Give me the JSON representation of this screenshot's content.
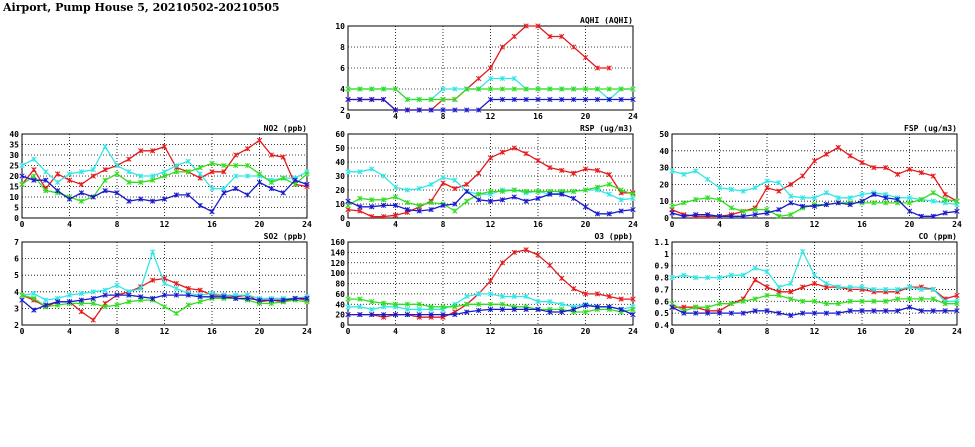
{
  "page": {
    "title": "Airport, Pump House 5, 20210502-20210505"
  },
  "colors": {
    "red": "#e41a1c",
    "cyan": "#33e6e6",
    "green": "#33dd22",
    "blue": "#1a1acc"
  },
  "chart_data": [
    {
      "id": "aqhi",
      "type": "line",
      "title": "AQHI (AQHI)",
      "xlabel": "",
      "ylabel": "",
      "xlim": [
        0,
        24
      ],
      "ylim": [
        2,
        10
      ],
      "xticks": [
        0,
        4,
        8,
        12,
        16,
        20,
        24
      ],
      "yticks": [
        2,
        4,
        6,
        8,
        10
      ],
      "x": [
        0,
        1,
        2,
        3,
        4,
        5,
        6,
        7,
        8,
        9,
        10,
        11,
        12,
        13,
        14,
        15,
        16,
        17,
        18,
        19,
        20,
        21,
        22,
        23,
        24
      ],
      "series": [
        {
          "name": "red",
          "color": "red",
          "values": [
            3,
            3,
            3,
            3,
            2,
            2,
            2,
            2,
            3,
            3,
            4,
            5,
            6,
            8,
            9,
            10,
            10,
            9,
            9,
            8,
            7,
            6,
            6,
            null,
            null
          ]
        },
        {
          "name": "cyan",
          "color": "cyan",
          "values": [
            4,
            4,
            4,
            4,
            4,
            3,
            3,
            3,
            4,
            4,
            4,
            4,
            5,
            5,
            5,
            4,
            4,
            4,
            4,
            4,
            4,
            4,
            3,
            4,
            4
          ]
        },
        {
          "name": "green",
          "color": "green",
          "values": [
            4,
            4,
            4,
            4,
            4,
            3,
            3,
            3,
            3,
            3,
            4,
            4,
            4,
            4,
            4,
            4,
            4,
            4,
            4,
            4,
            4,
            4,
            4,
            4,
            4
          ]
        },
        {
          "name": "blue",
          "color": "blue",
          "values": [
            3,
            3,
            3,
            3,
            2,
            2,
            2,
            2,
            2,
            2,
            2,
            2,
            3,
            3,
            3,
            3,
            3,
            3,
            3,
            3,
            3,
            3,
            3,
            3,
            3
          ]
        }
      ]
    },
    {
      "id": "no2",
      "type": "line",
      "title": "NO2 (ppb)",
      "xlabel": "",
      "ylabel": "",
      "xlim": [
        0,
        24
      ],
      "ylim": [
        0,
        40
      ],
      "xticks": [
        0,
        4,
        8,
        12,
        16,
        20,
        24
      ],
      "yticks": [
        0,
        5,
        10,
        15,
        20,
        25,
        30,
        35,
        40
      ],
      "x": [
        0,
        1,
        2,
        3,
        4,
        5,
        6,
        7,
        8,
        9,
        10,
        11,
        12,
        13,
        14,
        15,
        16,
        17,
        18,
        19,
        20,
        21,
        22,
        23,
        24
      ],
      "series": [
        {
          "name": "red",
          "color": "red",
          "values": [
            16,
            23,
            14,
            21,
            18,
            16,
            20,
            23,
            25,
            28,
            32,
            32,
            34,
            24,
            22,
            19,
            22,
            22,
            30,
            33,
            37,
            30,
            29,
            16,
            15
          ]
        },
        {
          "name": "cyan",
          "color": "cyan",
          "values": [
            25,
            28,
            22,
            17,
            21,
            22,
            23,
            34,
            25,
            22,
            20,
            20,
            22,
            25,
            27,
            21,
            14,
            14,
            20,
            20,
            20,
            18,
            19,
            19,
            22
          ]
        },
        {
          "name": "green",
          "color": "green",
          "values": [
            16,
            20,
            13,
            12,
            10,
            8,
            10,
            18,
            21,
            17,
            17,
            18,
            20,
            22,
            22,
            24,
            26,
            25,
            25,
            25,
            21,
            17,
            19,
            16,
            21
          ]
        },
        {
          "name": "blue",
          "color": "blue",
          "values": [
            20,
            18,
            18,
            13,
            9,
            12,
            10,
            13,
            12,
            8,
            9,
            8,
            9,
            11,
            11,
            6,
            3,
            12,
            14,
            11,
            17,
            14,
            12,
            18,
            16
          ]
        }
      ]
    },
    {
      "id": "rsp",
      "type": "line",
      "title": "RSP (ug/m3)",
      "xlabel": "",
      "ylabel": "",
      "xlim": [
        0,
        24
      ],
      "ylim": [
        0,
        60
      ],
      "xticks": [
        0,
        4,
        8,
        12,
        16,
        20,
        24
      ],
      "yticks": [
        0,
        10,
        20,
        30,
        40,
        50,
        60
      ],
      "x": [
        0,
        1,
        2,
        3,
        4,
        5,
        6,
        7,
        8,
        9,
        10,
        11,
        12,
        13,
        14,
        15,
        16,
        17,
        18,
        19,
        20,
        21,
        22,
        23,
        24
      ],
      "series": [
        {
          "name": "red",
          "color": "red",
          "values": [
            6,
            5,
            1,
            1,
            2,
            4,
            8,
            12,
            25,
            21,
            24,
            32,
            43,
            47,
            50,
            46,
            41,
            36,
            34,
            32,
            35,
            34,
            31,
            18,
            18
          ]
        },
        {
          "name": "cyan",
          "color": "cyan",
          "values": [
            33,
            33,
            35,
            30,
            22,
            20,
            21,
            24,
            29,
            27,
            19,
            17,
            17,
            20,
            20,
            18,
            19,
            17,
            18,
            19,
            20,
            20,
            17,
            13,
            14
          ]
        },
        {
          "name": "green",
          "color": "green",
          "values": [
            9,
            14,
            13,
            13,
            15,
            11,
            9,
            11,
            10,
            5,
            12,
            17,
            19,
            19,
            20,
            19,
            19,
            19,
            19,
            19,
            20,
            22,
            24,
            20,
            17
          ]
        },
        {
          "name": "blue",
          "color": "blue",
          "values": [
            12,
            8,
            8,
            9,
            9,
            6,
            5,
            6,
            9,
            10,
            19,
            13,
            12,
            13,
            15,
            12,
            14,
            17,
            17,
            14,
            8,
            3,
            3,
            5,
            6
          ]
        }
      ]
    },
    {
      "id": "fsp",
      "type": "line",
      "title": "FSP (ug/m3)",
      "xlabel": "",
      "ylabel": "",
      "xlim": [
        0,
        24
      ],
      "ylim": [
        0,
        50
      ],
      "xticks": [
        0,
        4,
        8,
        12,
        16,
        20,
        24
      ],
      "yticks": [
        0,
        10,
        20,
        30,
        40,
        50
      ],
      "x": [
        0,
        1,
        2,
        3,
        4,
        5,
        6,
        7,
        8,
        9,
        10,
        11,
        12,
        13,
        14,
        15,
        16,
        17,
        18,
        19,
        20,
        21,
        22,
        23,
        24
      ],
      "series": [
        {
          "name": "red",
          "color": "red",
          "values": [
            5,
            2,
            1,
            1,
            1,
            2,
            4,
            6,
            18,
            16,
            20,
            25,
            34,
            38,
            42,
            37,
            33,
            30,
            30,
            26,
            29,
            27,
            25,
            14,
            10
          ]
        },
        {
          "name": "cyan",
          "color": "cyan",
          "values": [
            28,
            26,
            28,
            23,
            18,
            17,
            16,
            18,
            22,
            21,
            13,
            12,
            12,
            15,
            12,
            12,
            14,
            15,
            14,
            12,
            12,
            11,
            10,
            9,
            8
          ]
        },
        {
          "name": "green",
          "color": "green",
          "values": [
            7,
            9,
            11,
            12,
            11,
            6,
            4,
            5,
            5,
            1,
            2,
            6,
            8,
            8,
            9,
            9,
            9,
            9,
            9,
            9,
            9,
            11,
            15,
            11,
            10
          ]
        },
        {
          "name": "blue",
          "color": "blue",
          "values": [
            3,
            1,
            2,
            2,
            1,
            1,
            1,
            2,
            3,
            5,
            9,
            7,
            7,
            8,
            9,
            8,
            10,
            14,
            12,
            11,
            4,
            1,
            1,
            3,
            4
          ]
        }
      ]
    },
    {
      "id": "so2",
      "type": "line",
      "title": "SO2 (ppb)",
      "xlabel": "",
      "ylabel": "",
      "xlim": [
        0,
        24
      ],
      "ylim": [
        2,
        7
      ],
      "xticks": [
        0,
        4,
        8,
        12,
        16,
        20,
        24
      ],
      "yticks": [
        2,
        3,
        4,
        5,
        6,
        7
      ],
      "x": [
        0,
        1,
        2,
        3,
        4,
        5,
        6,
        7,
        8,
        9,
        10,
        11,
        12,
        13,
        14,
        15,
        16,
        17,
        18,
        19,
        20,
        21,
        22,
        23,
        24
      ],
      "series": [
        {
          "name": "red",
          "color": "red",
          "values": [
            3.8,
            3.5,
            3.1,
            3.4,
            3.4,
            2.8,
            2.3,
            3.3,
            3.8,
            4.0,
            4.3,
            4.7,
            4.8,
            4.5,
            4.2,
            4.1,
            3.8,
            3.8,
            3.7,
            3.8,
            3.4,
            3.5,
            3.4,
            3.6,
            3.5
          ]
        },
        {
          "name": "cyan",
          "color": "cyan",
          "values": [
            3.8,
            3.9,
            3.5,
            3.6,
            3.8,
            3.9,
            4.0,
            4.1,
            4.4,
            4.0,
            4.2,
            6.4,
            4.5,
            4.2,
            3.9,
            3.8,
            3.9,
            3.8,
            3.8,
            3.8,
            3.6,
            3.6,
            3.6,
            3.6,
            3.7
          ]
        },
        {
          "name": "green",
          "color": "green",
          "values": [
            3.8,
            3.6,
            3.1,
            3.2,
            3.3,
            3.3,
            3.3,
            3.1,
            3.2,
            3.4,
            3.5,
            3.5,
            3.1,
            2.7,
            3.2,
            3.4,
            3.6,
            3.6,
            3.6,
            3.5,
            3.3,
            3.3,
            3.4,
            3.5,
            3.4
          ]
        },
        {
          "name": "blue",
          "color": "blue",
          "values": [
            3.5,
            2.9,
            3.2,
            3.4,
            3.4,
            3.5,
            3.6,
            3.8,
            3.8,
            3.8,
            3.7,
            3.6,
            3.8,
            3.8,
            3.8,
            3.7,
            3.7,
            3.7,
            3.6,
            3.6,
            3.5,
            3.5,
            3.5,
            3.6,
            3.6
          ]
        }
      ]
    },
    {
      "id": "o3",
      "type": "line",
      "title": "O3 (ppb)",
      "xlabel": "",
      "ylabel": "",
      "xlim": [
        0,
        24
      ],
      "ylim": [
        0,
        160
      ],
      "xticks": [
        0,
        4,
        8,
        12,
        16,
        20,
        24
      ],
      "yticks": [
        0,
        20,
        40,
        60,
        80,
        100,
        120,
        140,
        160
      ],
      "x": [
        0,
        1,
        2,
        3,
        4,
        5,
        6,
        7,
        8,
        9,
        10,
        11,
        12,
        13,
        14,
        15,
        16,
        17,
        18,
        19,
        20,
        21,
        22,
        23,
        24
      ],
      "series": [
        {
          "name": "red",
          "color": "red",
          "values": [
            20,
            20,
            20,
            15,
            20,
            20,
            15,
            15,
            15,
            25,
            40,
            60,
            85,
            120,
            140,
            145,
            135,
            115,
            90,
            70,
            60,
            60,
            55,
            50,
            50
          ]
        },
        {
          "name": "cyan",
          "color": "cyan",
          "values": [
            35,
            35,
            30,
            35,
            35,
            30,
            30,
            30,
            30,
            40,
            55,
            60,
            60,
            55,
            55,
            55,
            45,
            45,
            40,
            35,
            40,
            35,
            35,
            30,
            35
          ]
        },
        {
          "name": "green",
          "color": "green",
          "values": [
            50,
            50,
            45,
            42,
            40,
            40,
            40,
            35,
            35,
            35,
            40,
            40,
            40,
            40,
            35,
            35,
            30,
            30,
            30,
            25,
            25,
            30,
            30,
            25,
            30
          ]
        },
        {
          "name": "blue",
          "color": "blue",
          "values": [
            20,
            20,
            20,
            20,
            20,
            20,
            20,
            20,
            20,
            20,
            25,
            28,
            30,
            30,
            30,
            30,
            30,
            25,
            25,
            30,
            38,
            35,
            35,
            30,
            20
          ]
        }
      ]
    },
    {
      "id": "co",
      "type": "line",
      "title": "CO (ppm)",
      "xlabel": "",
      "ylabel": "",
      "xlim": [
        0,
        24
      ],
      "ylim": [
        0.4,
        1.1
      ],
      "xticks": [
        0,
        4,
        8,
        12,
        16,
        20,
        24
      ],
      "yticks": [
        0.4,
        0.5,
        0.6,
        0.7,
        0.8,
        0.9,
        1.0,
        1.1
      ],
      "x": [
        0,
        1,
        2,
        3,
        4,
        5,
        6,
        7,
        8,
        9,
        10,
        11,
        12,
        13,
        14,
        15,
        16,
        17,
        18,
        19,
        20,
        21,
        22,
        23,
        24
      ],
      "series": [
        {
          "name": "red",
          "color": "red",
          "values": [
            0.55,
            0.55,
            0.55,
            0.52,
            0.52,
            0.58,
            0.62,
            0.78,
            0.72,
            0.68,
            0.68,
            0.72,
            0.75,
            0.72,
            0.72,
            0.7,
            0.7,
            0.68,
            0.68,
            0.68,
            0.72,
            0.72,
            0.7,
            0.62,
            0.65
          ]
        },
        {
          "name": "cyan",
          "color": "cyan",
          "values": [
            0.8,
            0.82,
            0.8,
            0.8,
            0.8,
            0.82,
            0.82,
            0.88,
            0.85,
            0.72,
            0.75,
            1.02,
            0.82,
            0.75,
            0.72,
            0.72,
            0.72,
            0.7,
            0.7,
            0.7,
            0.72,
            0.7,
            0.7,
            0.6,
            0.6
          ]
        },
        {
          "name": "green",
          "color": "green",
          "values": [
            0.58,
            0.52,
            0.55,
            0.55,
            0.58,
            0.58,
            0.6,
            0.62,
            0.65,
            0.65,
            0.62,
            0.6,
            0.6,
            0.58,
            0.58,
            0.6,
            0.6,
            0.6,
            0.6,
            0.62,
            0.62,
            0.62,
            0.62,
            0.58,
            0.58
          ]
        },
        {
          "name": "blue",
          "color": "blue",
          "values": [
            0.55,
            0.5,
            0.5,
            0.5,
            0.5,
            0.5,
            0.5,
            0.52,
            0.52,
            0.5,
            0.48,
            0.5,
            0.5,
            0.5,
            0.5,
            0.52,
            0.52,
            0.52,
            0.52,
            0.52,
            0.55,
            0.52,
            0.52,
            0.52,
            0.52
          ]
        }
      ]
    }
  ]
}
